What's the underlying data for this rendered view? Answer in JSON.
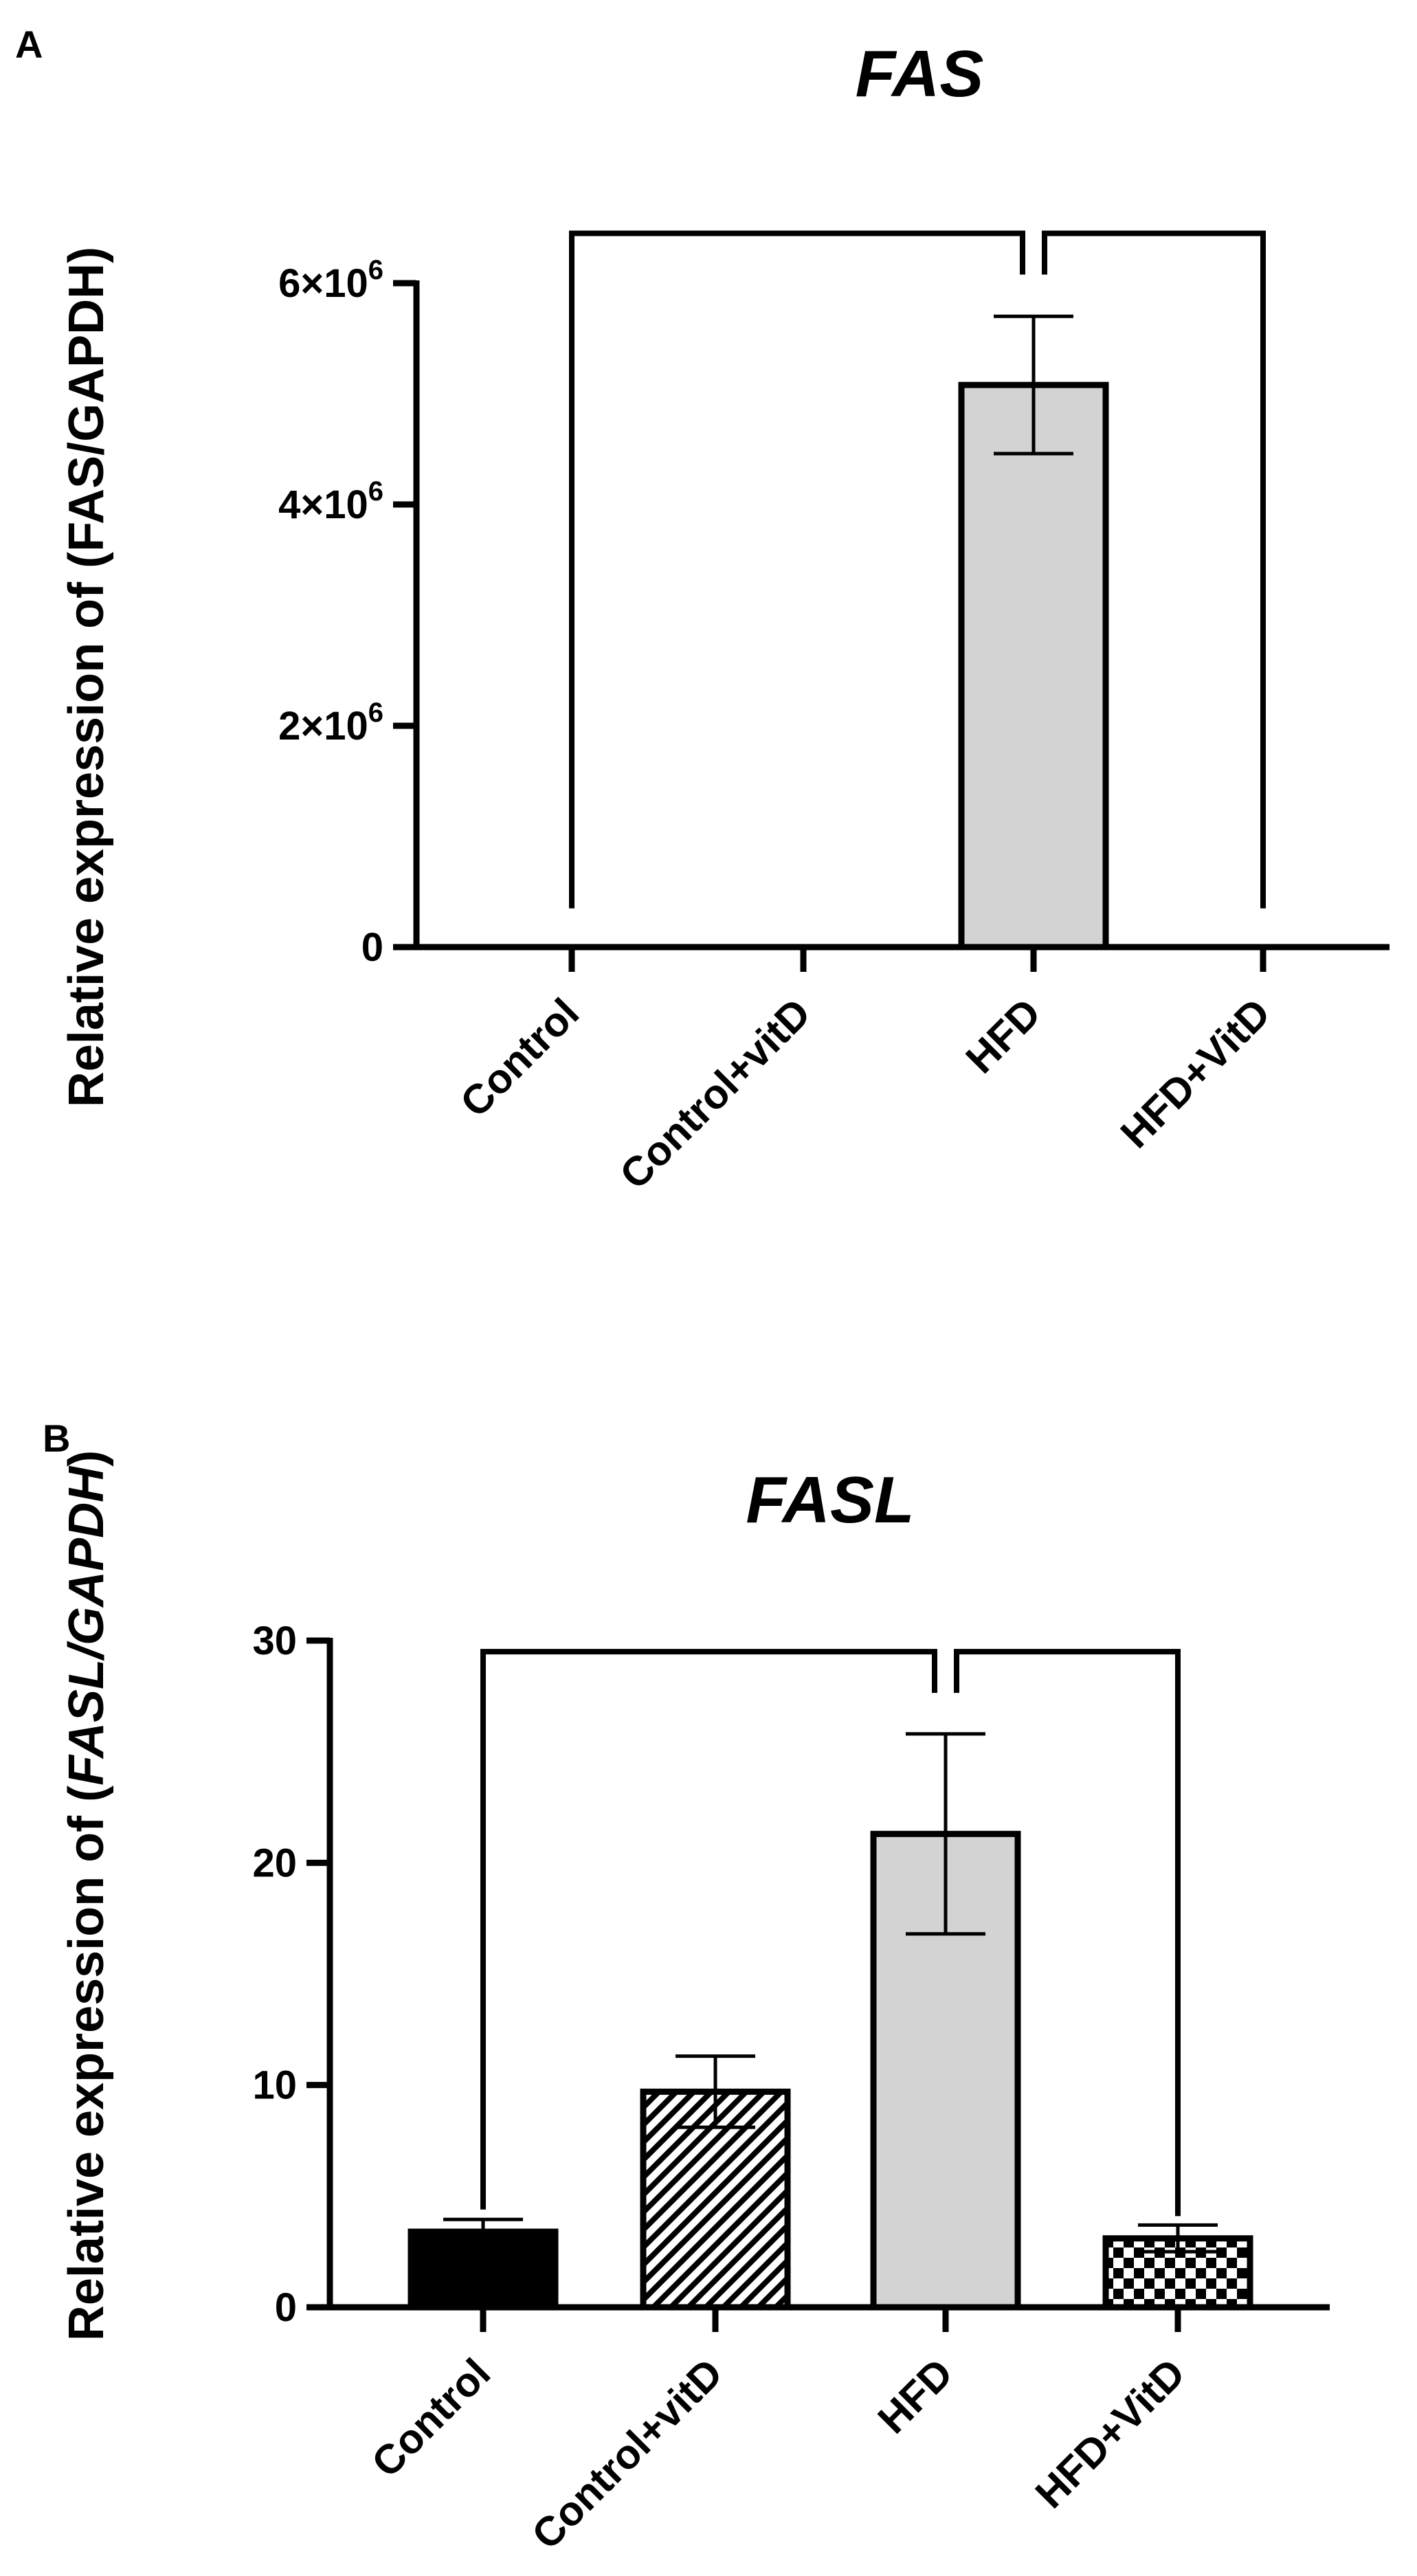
{
  "chart_data": [
    {
      "panel": "A",
      "type": "bar",
      "title": "FAS",
      "ylabel": "Relative expression of (FAS/GAPDH)",
      "categories": [
        "Control",
        "Control+vitD",
        "HFD",
        "HFD+VitD"
      ],
      "values": [
        0,
        0,
        5080000,
        0
      ],
      "errors": [
        0,
        0,
        620000,
        0
      ],
      "fills": [
        "solid",
        "hatch",
        "gray",
        "check"
      ],
      "ylim": [
        0,
        6000000
      ],
      "yticks": [
        0,
        2000000,
        4000000,
        6000000
      ],
      "ytick_base": [
        "0",
        "2×10",
        "4×10",
        "6×10"
      ],
      "ytick_exp": [
        "",
        "6",
        "6",
        "6"
      ],
      "bracket_level": 6450000,
      "bracket_left_bottom": 350000,
      "bracket_right_bottom": 350000,
      "grid": false,
      "legend": "none"
    },
    {
      "panel": "B",
      "type": "bar",
      "title": "FASL",
      "ylabel_plain_open": "Relative expression of (",
      "ylabel_italic": "FASL/GAPDH",
      "ylabel_plain_close": ")",
      "categories": [
        "Control",
        "Control+vitD",
        "HFD",
        "HFD+VitD"
      ],
      "values": [
        3.4,
        9.7,
        21.3,
        3.1
      ],
      "errors": [
        0.55,
        1.6,
        4.5,
        0.6
      ],
      "fills": [
        "solid",
        "hatch",
        "gray",
        "check"
      ],
      "ylim": [
        0,
        30
      ],
      "yticks": [
        0,
        10,
        20,
        30
      ],
      "ytick_base": [
        "0",
        "10",
        "20",
        "30"
      ],
      "ytick_exp": [
        "",
        "",
        "",
        ""
      ],
      "bracket_level": 29.5,
      "bracket_left_bottom": 4.4,
      "bracket_right_bottom": 4.1,
      "grid": false,
      "legend": "none"
    }
  ]
}
